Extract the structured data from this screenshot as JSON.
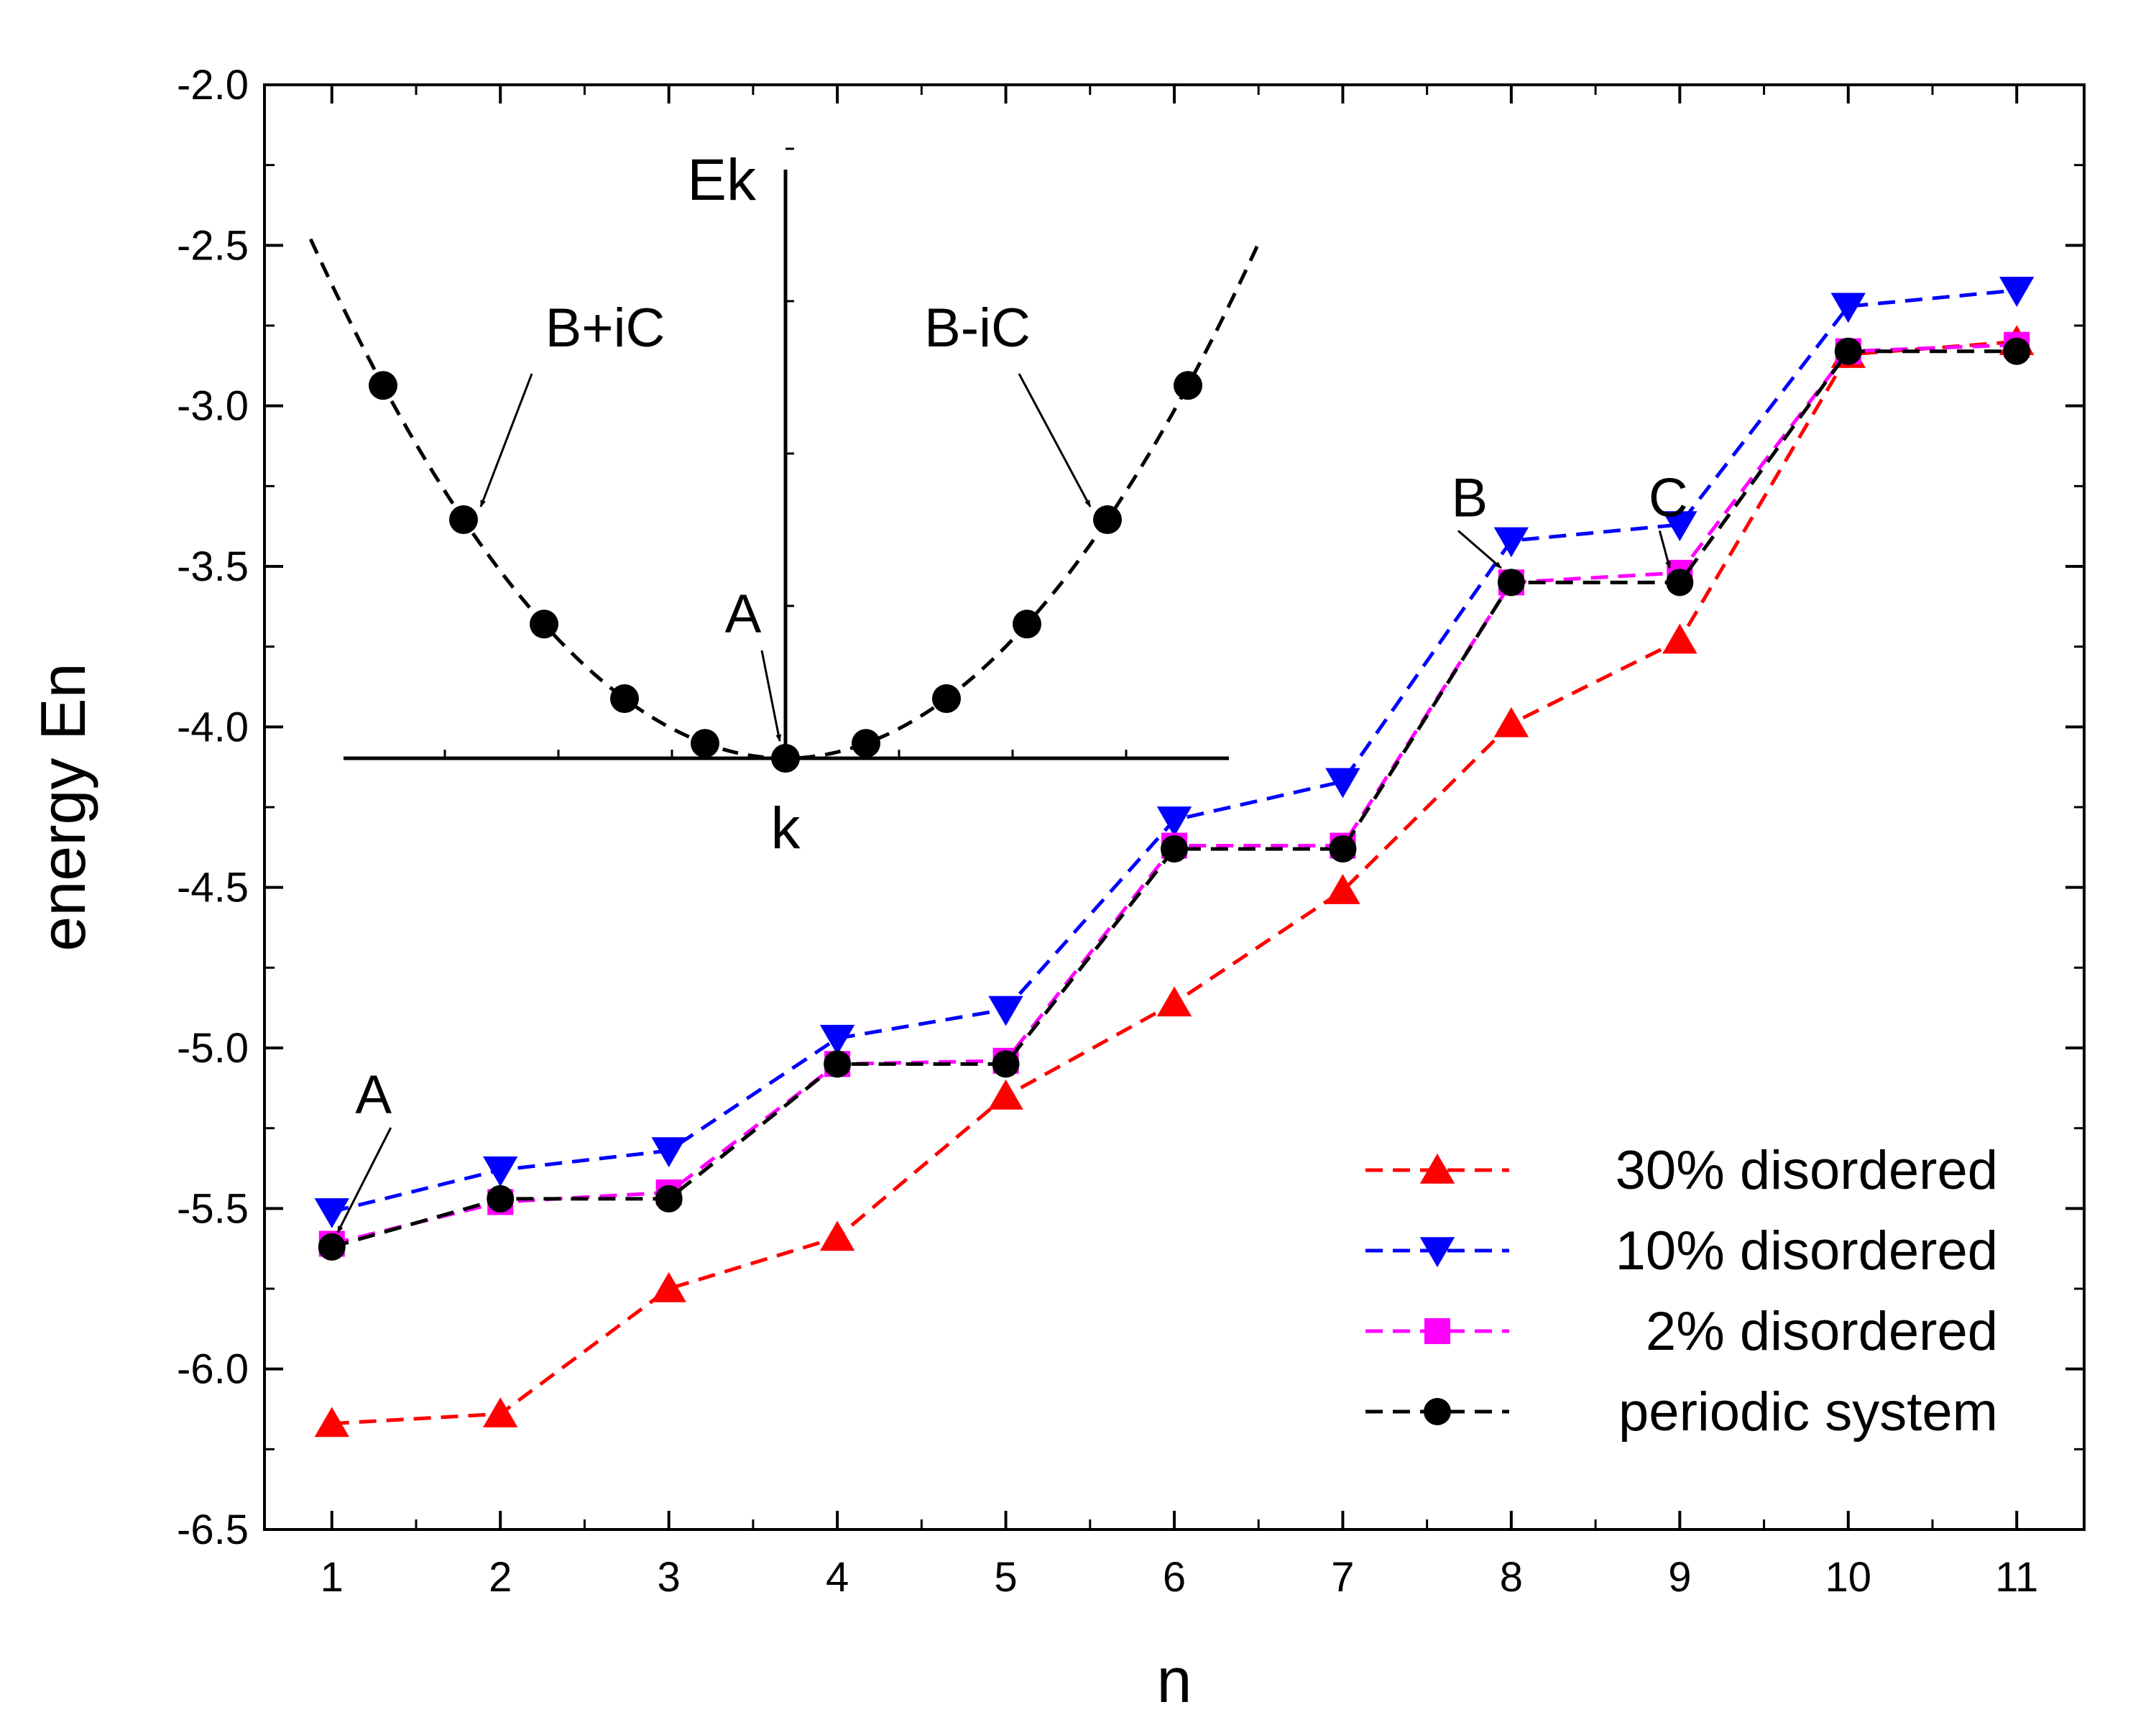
{
  "chart_data": {
    "type": "line",
    "xlabel": "n",
    "ylabel": "energy En",
    "xlim": [
      0.6,
      11.4
    ],
    "ylim": [
      -6.5,
      -2.0
    ],
    "x": [
      1,
      2,
      3,
      4,
      5,
      6,
      7,
      8,
      9,
      10,
      11
    ],
    "x_ticks": [
      "1",
      "2",
      "3",
      "4",
      "5",
      "6",
      "7",
      "8",
      "9",
      "10",
      "11"
    ],
    "y_ticks": [
      "-2.0",
      "-2.5",
      "-3.0",
      "-3.5",
      "-4.0",
      "-4.5",
      "-5.0",
      "-5.5",
      "-6.0",
      "-6.5"
    ],
    "legend_position": "bottom-right",
    "series": [
      {
        "name": "30% disordered",
        "color": "#ff0000",
        "marker": "triangle-up",
        "line": "dashed",
        "values": [
          -6.17,
          -6.14,
          -5.75,
          -5.59,
          -5.15,
          -4.86,
          -4.51,
          -3.99,
          -3.73,
          -2.84,
          -2.8
        ]
      },
      {
        "name": "10% disordered",
        "color": "#0000ff",
        "marker": "triangle-down",
        "line": "dashed",
        "values": [
          -5.51,
          -5.38,
          -5.32,
          -4.97,
          -4.88,
          -4.29,
          -4.17,
          -3.42,
          -3.37,
          -2.69,
          -2.64
        ]
      },
      {
        "name": "2% disordered",
        "color": "#ff00ff",
        "marker": "square",
        "line": "dashed",
        "values": [
          -5.61,
          -5.48,
          -5.45,
          -5.05,
          -5.04,
          -4.37,
          -4.37,
          -3.55,
          -3.52,
          -2.83,
          -2.81
        ]
      },
      {
        "name": "periodic system",
        "color": "#000000",
        "marker": "circle",
        "line": "dashed",
        "values": [
          -5.62,
          -5.47,
          -5.47,
          -5.05,
          -5.05,
          -4.38,
          -4.38,
          -3.55,
          -3.55,
          -2.83,
          -2.83
        ]
      }
    ],
    "annotations": [
      {
        "text": "A",
        "target_n": 1,
        "target_value": -5.62
      },
      {
        "text": "B",
        "target_n": 8,
        "target_value": -3.55
      },
      {
        "text": "C",
        "target_n": 9,
        "target_value": -3.55
      }
    ],
    "inset": {
      "type": "dispersion",
      "xlabel": "k",
      "ylabel": "Ek",
      "points_k": [
        -5,
        -4,
        -3,
        -2,
        -1,
        0,
        1,
        2,
        3,
        4,
        5
      ],
      "curve_color": "#000000",
      "annotations": [
        "A",
        "B+iC",
        "B-iC"
      ]
    }
  }
}
